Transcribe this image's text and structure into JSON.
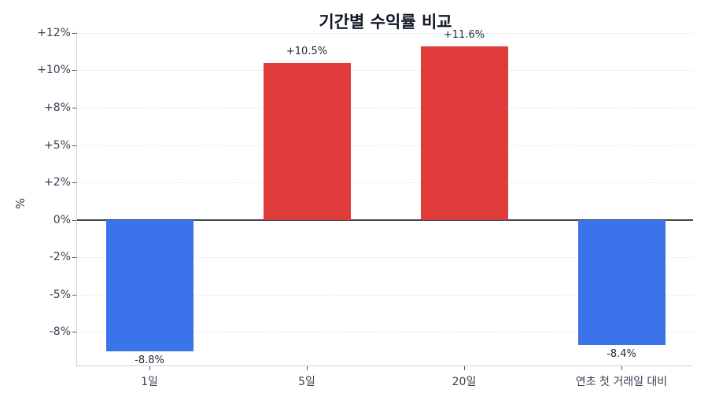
{
  "chart_data": {
    "type": "bar",
    "title": "기간별 수익률 비교",
    "xlabel": "",
    "ylabel": "%",
    "categories": [
      "1일",
      "5일",
      "20일",
      "연초 첫 거래일 대비"
    ],
    "values": [
      -8.8,
      10.5,
      11.6,
      -8.4
    ],
    "value_labels": [
      "-8.8%",
      "+10.5%",
      "+11.6%",
      "-8.4%"
    ],
    "colors": [
      "#3b73ea",
      "#e03b3b",
      "#e03b3b",
      "#3b73ea"
    ],
    "positive_color": "#e03b3b",
    "negative_color": "#3b73ea",
    "ylim": [
      -9.8,
      12.6
    ],
    "yticks": [
      12.5,
      10,
      7.5,
      5,
      2.5,
      0,
      -2.5,
      -5,
      -7.5
    ],
    "ytick_labels": [
      "+12%",
      "+10%",
      "+8%",
      "+5%",
      "+2%",
      "0%",
      "-2%",
      "-5%",
      "-8%"
    ],
    "grid": true,
    "grid_style": "dashed horizontal",
    "zero_line": true,
    "legend": null
  }
}
